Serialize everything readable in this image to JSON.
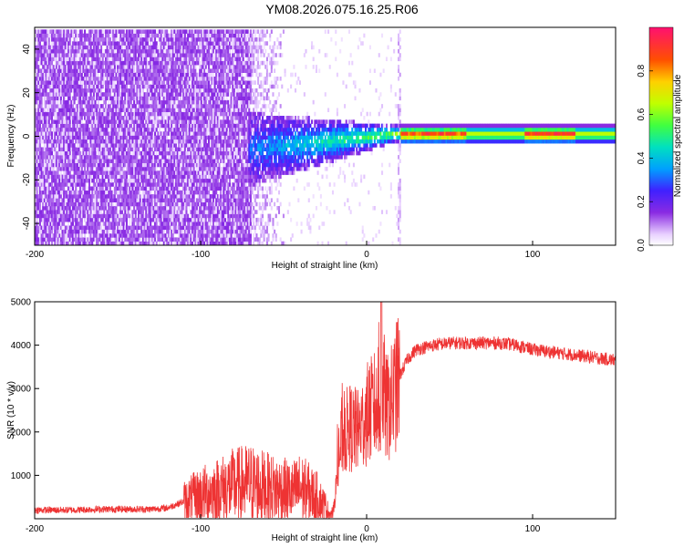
{
  "figure_title": "YM08.2026.075.16.25.R06",
  "chart_data": [
    {
      "type": "heatmap",
      "xlabel": "Height of straight line (km)",
      "ylabel": "Frequency (Hz)",
      "xlim": [
        -200,
        150
      ],
      "ylim": [
        -50,
        50
      ],
      "xticks": [
        -200,
        -100,
        0,
        100
      ],
      "yticks": [
        -40,
        -20,
        0,
        20,
        40
      ],
      "colorbar": {
        "label": "Normalized spectral amplitude",
        "range": [
          0,
          1
        ],
        "ticks": [
          0.0,
          0.2,
          0.4,
          0.6,
          0.8
        ],
        "tick_labels": [
          "0.0",
          "0.2",
          "0.4",
          "0.6",
          "0.8"
        ],
        "colormap": "rainbow"
      },
      "regions": [
        {
          "x_range": [
            -200,
            -70
          ],
          "y_range": [
            -50,
            48
          ],
          "level": "0.05-0.15",
          "pattern": "dense noise"
        },
        {
          "x_range": [
            -70,
            -50
          ],
          "y_range": [
            -50,
            48
          ],
          "level": "0.0-0.1",
          "pattern": "fading noise"
        },
        {
          "x_range": [
            -70,
            18
          ],
          "y_range": [
            -25,
            10
          ],
          "level": "0.1-0.5",
          "pattern": "converging cone"
        },
        {
          "x_range": [
            18,
            20
          ],
          "y_range": [
            -50,
            48
          ],
          "level": "0.05",
          "pattern": "vertical stripe"
        },
        {
          "x_range": [
            20,
            150
          ],
          "y_range": [
            -3,
            3
          ],
          "level": "0.3-0.9",
          "pattern": "narrow band at 0 Hz"
        }
      ]
    },
    {
      "type": "line",
      "xlabel": "Height of straight line (km)",
      "ylabel": "SNR (10 * v/v)",
      "xlim": [
        -200,
        150
      ],
      "ylim": [
        0,
        5000
      ],
      "xticks": [
        -200,
        -100,
        0,
        100
      ],
      "yticks": [
        1000,
        2000,
        3000,
        4000,
        5000
      ],
      "color": "#ee3333",
      "series": [
        {
          "x": [
            -200,
            -180,
            -160,
            -140,
            -130,
            -120,
            -110,
            -100,
            -90,
            -80,
            -70,
            -60,
            -50,
            -45,
            -40,
            -35,
            -30,
            -25,
            -22,
            -20,
            -18,
            -15,
            -10,
            -5,
            0,
            5,
            8,
            10,
            12,
            15,
            20,
            25,
            30,
            40,
            50,
            60,
            70,
            80,
            90,
            100,
            110,
            120,
            130,
            140,
            150
          ],
          "y": [
            200,
            200,
            220,
            220,
            220,
            250,
            400,
            550,
            650,
            750,
            800,
            700,
            650,
            600,
            700,
            600,
            500,
            300,
            100,
            150,
            900,
            1900,
            2100,
            2000,
            2400,
            2600,
            2200,
            3000,
            2500,
            2700,
            3300,
            3700,
            3900,
            4000,
            4050,
            4050,
            4050,
            4050,
            4000,
            3900,
            3850,
            3800,
            3750,
            3700,
            3650
          ]
        }
      ]
    }
  ]
}
